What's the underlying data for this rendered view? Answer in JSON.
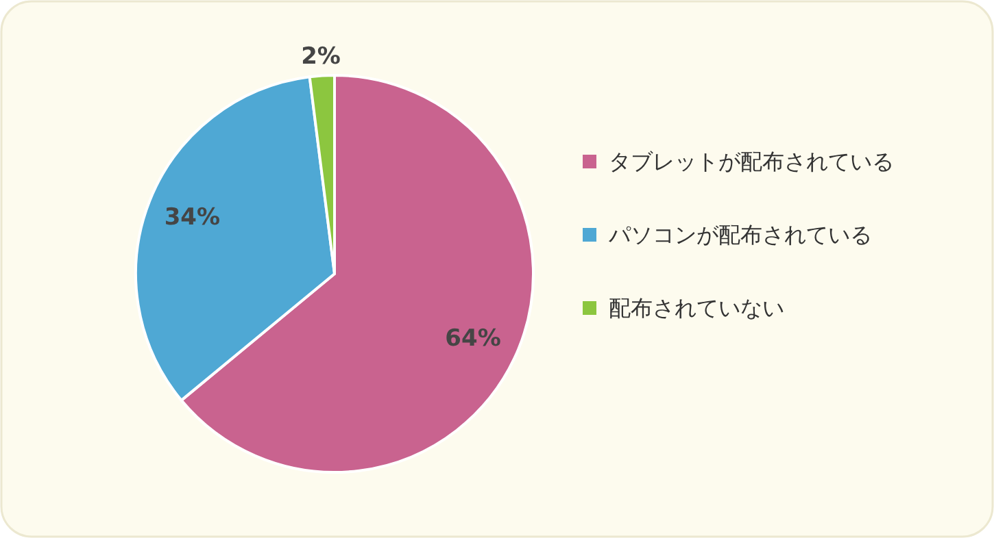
{
  "chart_data": {
    "type": "pie",
    "categories": [
      "タブレットが配布されている",
      "パソコンが配布されている",
      "配布されていない"
    ],
    "values": [
      64,
      34,
      2
    ],
    "colors": [
      "#c9638f",
      "#4fa8d4",
      "#8cc63f"
    ],
    "value_labels": [
      "64%",
      "34%",
      "2%"
    ],
    "legend": "right"
  }
}
